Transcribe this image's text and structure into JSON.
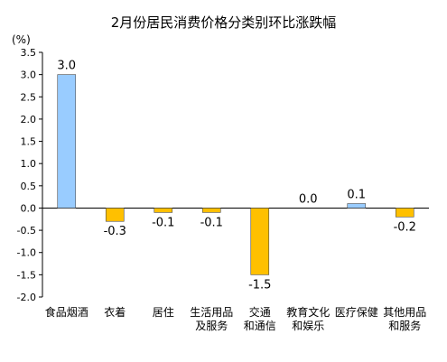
{
  "chart_data": {
    "type": "bar",
    "title": "2月份居民消费价格分类别环比涨跌幅",
    "unit_label": "(%)",
    "ylim": [
      -2.0,
      3.5
    ],
    "y_ticks": [
      "3.5",
      "3.0",
      "2.5",
      "2.0",
      "1.5",
      "1.0",
      "0.5",
      "0.0",
      "-0.5",
      "-1.0",
      "-1.5",
      "-2.0"
    ],
    "categories": [
      [
        "食品烟酒"
      ],
      [
        "衣着"
      ],
      [
        "居住"
      ],
      [
        "生活用品",
        "及服务"
      ],
      [
        "交通",
        "和通信"
      ],
      [
        "教育文化",
        "和娱乐"
      ],
      [
        "医疗保健"
      ],
      [
        "其他用品",
        "和服务"
      ]
    ],
    "values": [
      3.0,
      -0.3,
      -0.1,
      -0.1,
      -1.5,
      0.0,
      0.1,
      -0.2
    ],
    "value_labels": [
      "3.0",
      "-0.3",
      "-0.1",
      "-0.1",
      "-1.5",
      "0.0",
      "0.1",
      "-0.2"
    ],
    "positive_color": "#99ccff",
    "negative_color": "#ffc000",
    "border_color": "#4a4a4a",
    "grid": false,
    "legend": "none"
  }
}
